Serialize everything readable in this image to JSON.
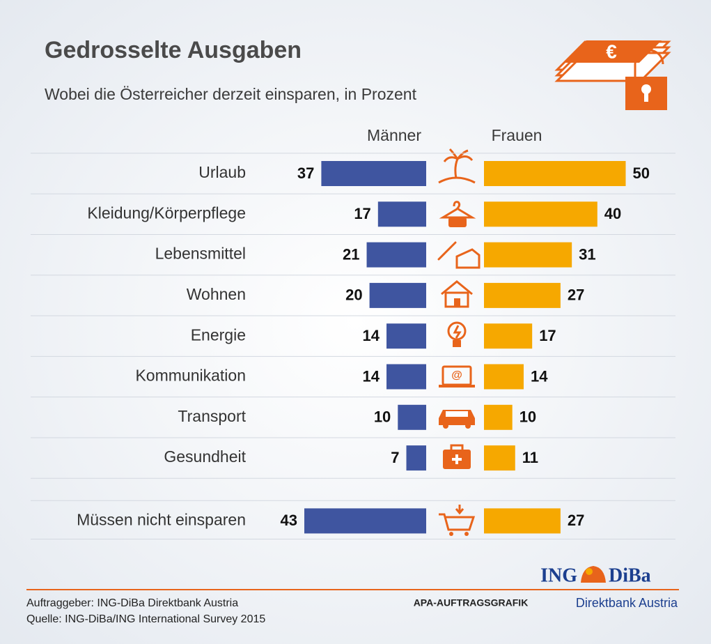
{
  "chart_data": {
    "type": "butterfly-bar",
    "title": "Gedrosselte Ausgaben",
    "subtitle": "Wobei die Österreicher derzeit einsparen, in Prozent",
    "categories": [
      "Urlaub",
      "Kleidung/Körperpflege",
      "Lebensmittel",
      "Wohnen",
      "Energie",
      "Kommunikation",
      "Transport",
      "Gesundheit",
      "Müssen nicht einsparen"
    ],
    "series": [
      {
        "name": "Männer",
        "color": "#3f55a0",
        "values": [
          37,
          17,
          21,
          20,
          14,
          14,
          10,
          7,
          43
        ]
      },
      {
        "name": "Frauen",
        "color": "#f6a800",
        "values": [
          50,
          40,
          31,
          27,
          17,
          14,
          10,
          11,
          27
        ]
      }
    ]
  },
  "footer": {
    "client": "Auftraggeber: ING-DiBa Direktbank Austria",
    "source": "Quelle: ING-DiBa/ING International Survey 2015",
    "credit": "APA-AUFTRAGSGRAFIK"
  },
  "logo": {
    "ing": "ING",
    "diba": "DiBa",
    "tagline": "Direktbank Austria"
  }
}
